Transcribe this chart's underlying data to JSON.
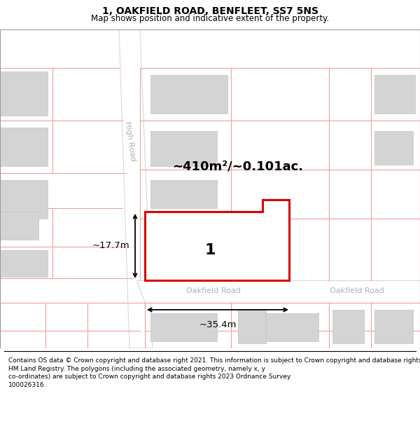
{
  "title": "1, OAKFIELD ROAD, BENFLEET, SS7 5NS",
  "subtitle": "Map shows position and indicative extent of the property.",
  "footer": "Contains OS data © Crown copyright and database right 2021. This information is subject to Crown copyright and database rights 2023 and is reproduced with the permission of\nHM Land Registry. The polygons (including the associated geometry, namely x, y\nco-ordinates) are subject to Crown copyright and database rights 2023 Ordnance Survey\n100026316.",
  "map_bg": "#f2f2f2",
  "road_fill": "#ffffff",
  "road_edge": "#d8d8d8",
  "building_fill": "#d4d4d4",
  "building_edge": "#c4c4c4",
  "highlight_stroke": "#dd0000",
  "highlight_fill": "#ffffff",
  "cadastral_color": "#f0a0a0",
  "area_label": "~410m²/~0.101ac.",
  "number_label": "1",
  "dim_width": "~35.4m",
  "dim_height": "~17.7m",
  "road_label_high": "High Road",
  "road_label_oak1": "Oakfield Road",
  "road_label_oak2": "Oakfield Road",
  "road_label_color": "#b0b0b0",
  "title_fontsize": 10,
  "subtitle_fontsize": 8.5,
  "footer_fontsize": 6.5
}
